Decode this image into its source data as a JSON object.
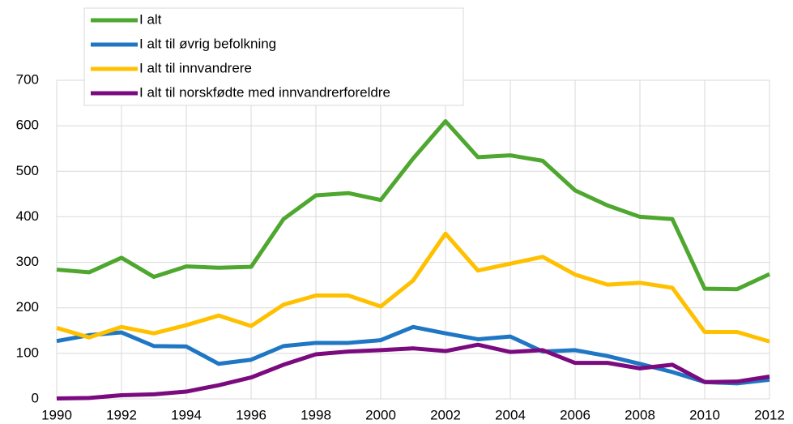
{
  "chart_data": {
    "type": "line",
    "x": [
      1990,
      1991,
      1992,
      1993,
      1994,
      1995,
      1996,
      1997,
      1998,
      1999,
      2000,
      2001,
      2002,
      2003,
      2004,
      2005,
      2006,
      2007,
      2008,
      2009,
      2010,
      2011,
      2012
    ],
    "series": [
      {
        "name": "I alt",
        "color": "#4ea72e",
        "values": [
          284,
          278,
          310,
          268,
          291,
          288,
          290,
          395,
          447,
          452,
          437,
          528,
          610,
          531,
          535,
          523,
          458,
          425,
          400,
          395,
          242,
          241,
          274
        ]
      },
      {
        "name": "I alt til øvrig befolkning",
        "color": "#1f77c4",
        "values": [
          127,
          140,
          146,
          116,
          115,
          77,
          86,
          116,
          123,
          123,
          129,
          158,
          144,
          131,
          137,
          104,
          107,
          94,
          77,
          59,
          37,
          34,
          42
        ]
      },
      {
        "name": "I alt til innvandrere",
        "color": "#ffc000",
        "values": [
          156,
          135,
          158,
          144,
          162,
          183,
          160,
          207,
          227,
          227,
          203,
          260,
          363,
          282,
          297,
          312,
          273,
          251,
          255,
          244,
          147,
          147,
          126
        ]
      },
      {
        "name": "I alt til norskfødte med innvandrerforeldre",
        "color": "#7b0a7f",
        "values": [
          1,
          2,
          8,
          10,
          16,
          30,
          47,
          75,
          98,
          104,
          107,
          111,
          105,
          119,
          103,
          107,
          79,
          79,
          67,
          75,
          37,
          38,
          49
        ]
      }
    ],
    "xlim": [
      1990,
      2012
    ],
    "xticks": [
      1990,
      1992,
      1994,
      1996,
      1998,
      2000,
      2002,
      2004,
      2006,
      2008,
      2010,
      2012
    ],
    "ylim": [
      0,
      700
    ],
    "yticks": [
      0,
      100,
      200,
      300,
      400,
      500,
      600,
      700
    ],
    "grid": true,
    "legend": "top-left"
  }
}
